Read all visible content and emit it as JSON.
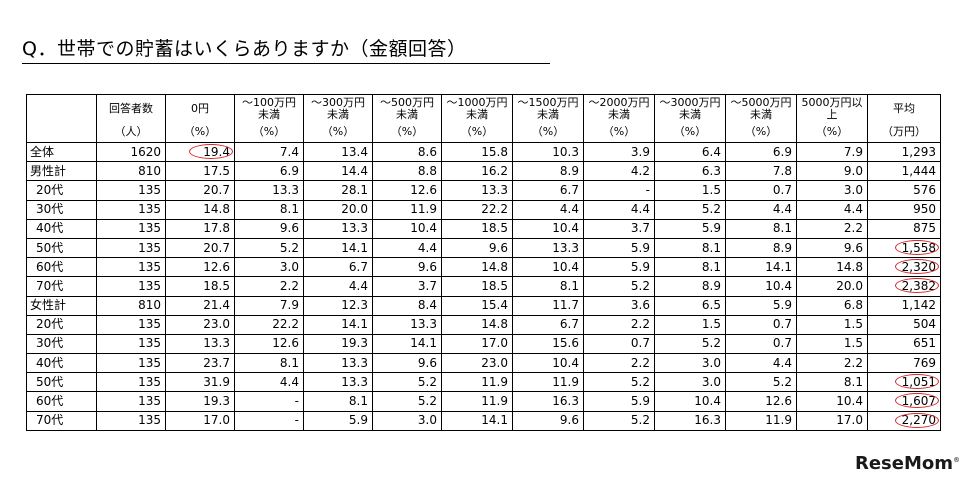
{
  "title": "Q．世帯での貯蓄はいくらありますか（金額回答）",
  "columns": [
    {
      "head": "回答者数",
      "unit": "（人）"
    },
    {
      "head": "0円",
      "unit": "（%）"
    },
    {
      "head": "～100万円未満",
      "unit": "（%）"
    },
    {
      "head": "～300万円未満",
      "unit": "（%）"
    },
    {
      "head": "～500万円未満",
      "unit": "（%）"
    },
    {
      "head": "～1000万円未満",
      "unit": "（%）"
    },
    {
      "head": "～1500万円未満",
      "unit": "（%）"
    },
    {
      "head": "～2000万円未満",
      "unit": "（%）"
    },
    {
      "head": "～3000万円未満",
      "unit": "（%）"
    },
    {
      "head": "～5000万円未満",
      "unit": "（%）"
    },
    {
      "head": "5000万円以上",
      "unit": "（%）"
    },
    {
      "head": "平均",
      "unit": "（万円）"
    }
  ],
  "rows": [
    {
      "label": "全体",
      "values": [
        "1620",
        "19.4",
        "7.4",
        "13.4",
        "8.6",
        "15.8",
        "10.3",
        "3.9",
        "6.4",
        "6.9",
        "7.9",
        "1,293"
      ],
      "circled": [
        1
      ],
      "sub": false
    },
    {
      "label": "男性計",
      "values": [
        "810",
        "17.5",
        "6.9",
        "14.4",
        "8.8",
        "16.2",
        "8.9",
        "4.2",
        "6.3",
        "7.8",
        "9.0",
        "1,444"
      ],
      "circled": [],
      "sub": false
    },
    {
      "label": "20代",
      "values": [
        "135",
        "20.7",
        "13.3",
        "28.1",
        "12.6",
        "13.3",
        "6.7",
        "-",
        "1.5",
        "0.7",
        "3.0",
        "576"
      ],
      "circled": [],
      "sub": true
    },
    {
      "label": "30代",
      "values": [
        "135",
        "14.8",
        "8.1",
        "20.0",
        "11.9",
        "22.2",
        "4.4",
        "4.4",
        "5.2",
        "4.4",
        "4.4",
        "950"
      ],
      "circled": [],
      "sub": true
    },
    {
      "label": "40代",
      "values": [
        "135",
        "17.8",
        "9.6",
        "13.3",
        "10.4",
        "18.5",
        "10.4",
        "3.7",
        "5.9",
        "8.1",
        "2.2",
        "875"
      ],
      "circled": [],
      "sub": true
    },
    {
      "label": "50代",
      "values": [
        "135",
        "20.7",
        "5.2",
        "14.1",
        "4.4",
        "9.6",
        "13.3",
        "5.9",
        "8.1",
        "8.9",
        "9.6",
        "1,558"
      ],
      "circled": [
        11
      ],
      "sub": true
    },
    {
      "label": "60代",
      "values": [
        "135",
        "12.6",
        "3.0",
        "6.7",
        "9.6",
        "14.8",
        "10.4",
        "5.9",
        "8.1",
        "14.1",
        "14.8",
        "2,320"
      ],
      "circled": [
        11
      ],
      "sub": true
    },
    {
      "label": "70代",
      "values": [
        "135",
        "18.5",
        "2.2",
        "4.4",
        "3.7",
        "18.5",
        "8.1",
        "5.2",
        "8.9",
        "10.4",
        "20.0",
        "2,382"
      ],
      "circled": [
        11
      ],
      "sub": true
    },
    {
      "label": "女性計",
      "values": [
        "810",
        "21.4",
        "7.9",
        "12.3",
        "8.4",
        "15.4",
        "11.7",
        "3.6",
        "6.5",
        "5.9",
        "6.8",
        "1,142"
      ],
      "circled": [],
      "sub": false
    },
    {
      "label": "20代",
      "values": [
        "135",
        "23.0",
        "22.2",
        "14.1",
        "13.3",
        "14.8",
        "6.7",
        "2.2",
        "1.5",
        "0.7",
        "1.5",
        "504"
      ],
      "circled": [],
      "sub": true
    },
    {
      "label": "30代",
      "values": [
        "135",
        "13.3",
        "12.6",
        "19.3",
        "14.1",
        "17.0",
        "15.6",
        "0.7",
        "5.2",
        "0.7",
        "1.5",
        "651"
      ],
      "circled": [],
      "sub": true
    },
    {
      "label": "40代",
      "values": [
        "135",
        "23.7",
        "8.1",
        "13.3",
        "9.6",
        "23.0",
        "10.4",
        "2.2",
        "3.0",
        "4.4",
        "2.2",
        "769"
      ],
      "circled": [],
      "sub": true
    },
    {
      "label": "50代",
      "values": [
        "135",
        "31.9",
        "4.4",
        "13.3",
        "5.2",
        "11.9",
        "11.9",
        "5.2",
        "3.0",
        "5.2",
        "8.1",
        "1,051"
      ],
      "circled": [
        11
      ],
      "sub": true
    },
    {
      "label": "60代",
      "values": [
        "135",
        "19.3",
        "-",
        "8.1",
        "5.2",
        "11.9",
        "16.3",
        "5.9",
        "10.4",
        "12.6",
        "10.4",
        "1,607"
      ],
      "circled": [
        11
      ],
      "sub": true
    },
    {
      "label": "70代",
      "values": [
        "135",
        "17.0",
        "-",
        "5.9",
        "3.0",
        "14.1",
        "9.6",
        "5.2",
        "16.3",
        "11.9",
        "17.0",
        "2,270"
      ],
      "circled": [
        11
      ],
      "sub": true
    }
  ],
  "logo": "ReseMom"
}
